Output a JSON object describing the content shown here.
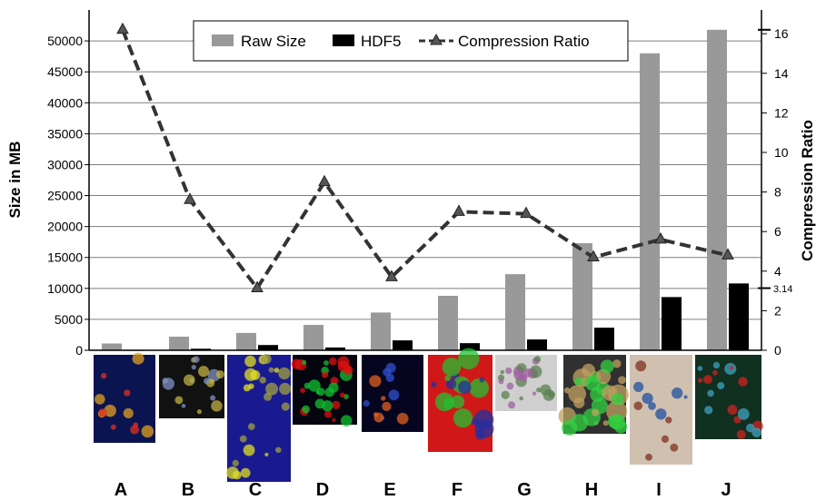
{
  "chart_data": {
    "type": "bar",
    "title": "",
    "xlabel": "",
    "ylabel": "Size in MB",
    "y2label": "Compression Ratio",
    "categories": [
      "A",
      "B",
      "C",
      "D",
      "E",
      "F",
      "G",
      "H",
      "I",
      "J"
    ],
    "ylim": [
      0,
      55000
    ],
    "y2lim": [
      0,
      17.2
    ],
    "yticks": [
      0,
      5000,
      10000,
      15000,
      20000,
      25000,
      30000,
      35000,
      40000,
      45000,
      50000
    ],
    "y2ticks": [
      0,
      2,
      4,
      6,
      8,
      10,
      12,
      14,
      16
    ],
    "y2_annotation": "3.14",
    "grid": true,
    "legend_position": "top-right",
    "series": [
      {
        "name": "Raw Size",
        "type": "bar",
        "axis": "left",
        "color": "#999999",
        "values": [
          1100,
          2200,
          2800,
          4100,
          6100,
          8800,
          12300,
          17300,
          48000,
          51800
        ]
      },
      {
        "name": "HDF5",
        "type": "bar",
        "axis": "left",
        "color": "#000000",
        "values": [
          60,
          250,
          850,
          450,
          1600,
          1150,
          1750,
          3650,
          8600,
          10800
        ]
      },
      {
        "name": "Compression Ratio",
        "type": "line",
        "axis": "right",
        "color": "#333333",
        "marker": "triangle",
        "dash": "dashed",
        "values": [
          16.2,
          7.6,
          3.14,
          8.5,
          3.7,
          7.0,
          6.9,
          4.7,
          5.6,
          4.8
        ]
      }
    ],
    "thumbnails": [
      {
        "category": "A",
        "palette": [
          "#0a1450",
          "#e0a020",
          "#e03020"
        ]
      },
      {
        "category": "B",
        "palette": [
          "#111111",
          "#8090c0",
          "#c0b040"
        ]
      },
      {
        "category": "C",
        "palette": [
          "#1a1a90",
          "#a0a040",
          "#e0e020"
        ]
      },
      {
        "category": "D",
        "palette": [
          "#050510",
          "#e01010",
          "#10c030"
        ]
      },
      {
        "category": "E",
        "palette": [
          "#050520",
          "#e06020",
          "#3050d0"
        ]
      },
      {
        "category": "F",
        "palette": [
          "#d01818",
          "#20c030",
          "#2030a0"
        ]
      },
      {
        "category": "G",
        "palette": [
          "#cfcfcf",
          "#5a8050",
          "#a060a0"
        ]
      },
      {
        "category": "H",
        "palette": [
          "#303030",
          "#c0a060",
          "#30d040"
        ]
      },
      {
        "category": "I",
        "palette": [
          "#d0c0b0",
          "#803020",
          "#2050a0"
        ]
      },
      {
        "category": "J",
        "palette": [
          "#103020",
          "#d02020",
          "#40a0c0"
        ]
      }
    ]
  }
}
